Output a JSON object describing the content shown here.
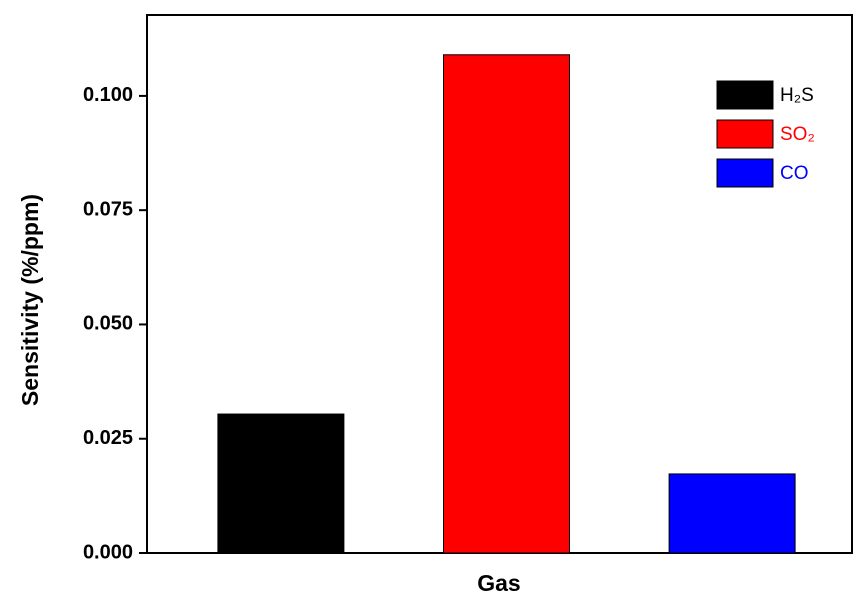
{
  "chart_data": {
    "type": "bar",
    "x_label": "Gas",
    "y_label": "Sensitivity (%/ppm)",
    "categories": [
      null
    ],
    "series": [
      {
        "name": "H₂S",
        "color": "#000000",
        "values": [
          0.0304
        ]
      },
      {
        "name": "SO₂",
        "color": "#ff0000",
        "values": [
          0.109
        ]
      },
      {
        "name": "CO",
        "color": "#0000ff",
        "values": [
          0.0173
        ]
      }
    ],
    "ylim": [
      0,
      0.1177
    ],
    "yticks": [
      {
        "value": 0,
        "label": "0.000"
      },
      {
        "value": 0.025,
        "label": "0.025"
      },
      {
        "value": 0.05,
        "label": "0.050"
      },
      {
        "value": 0.075,
        "label": "0.075"
      },
      {
        "value": 0.1,
        "label": "0.100"
      }
    ],
    "legend": "top-right",
    "grid": false
  }
}
